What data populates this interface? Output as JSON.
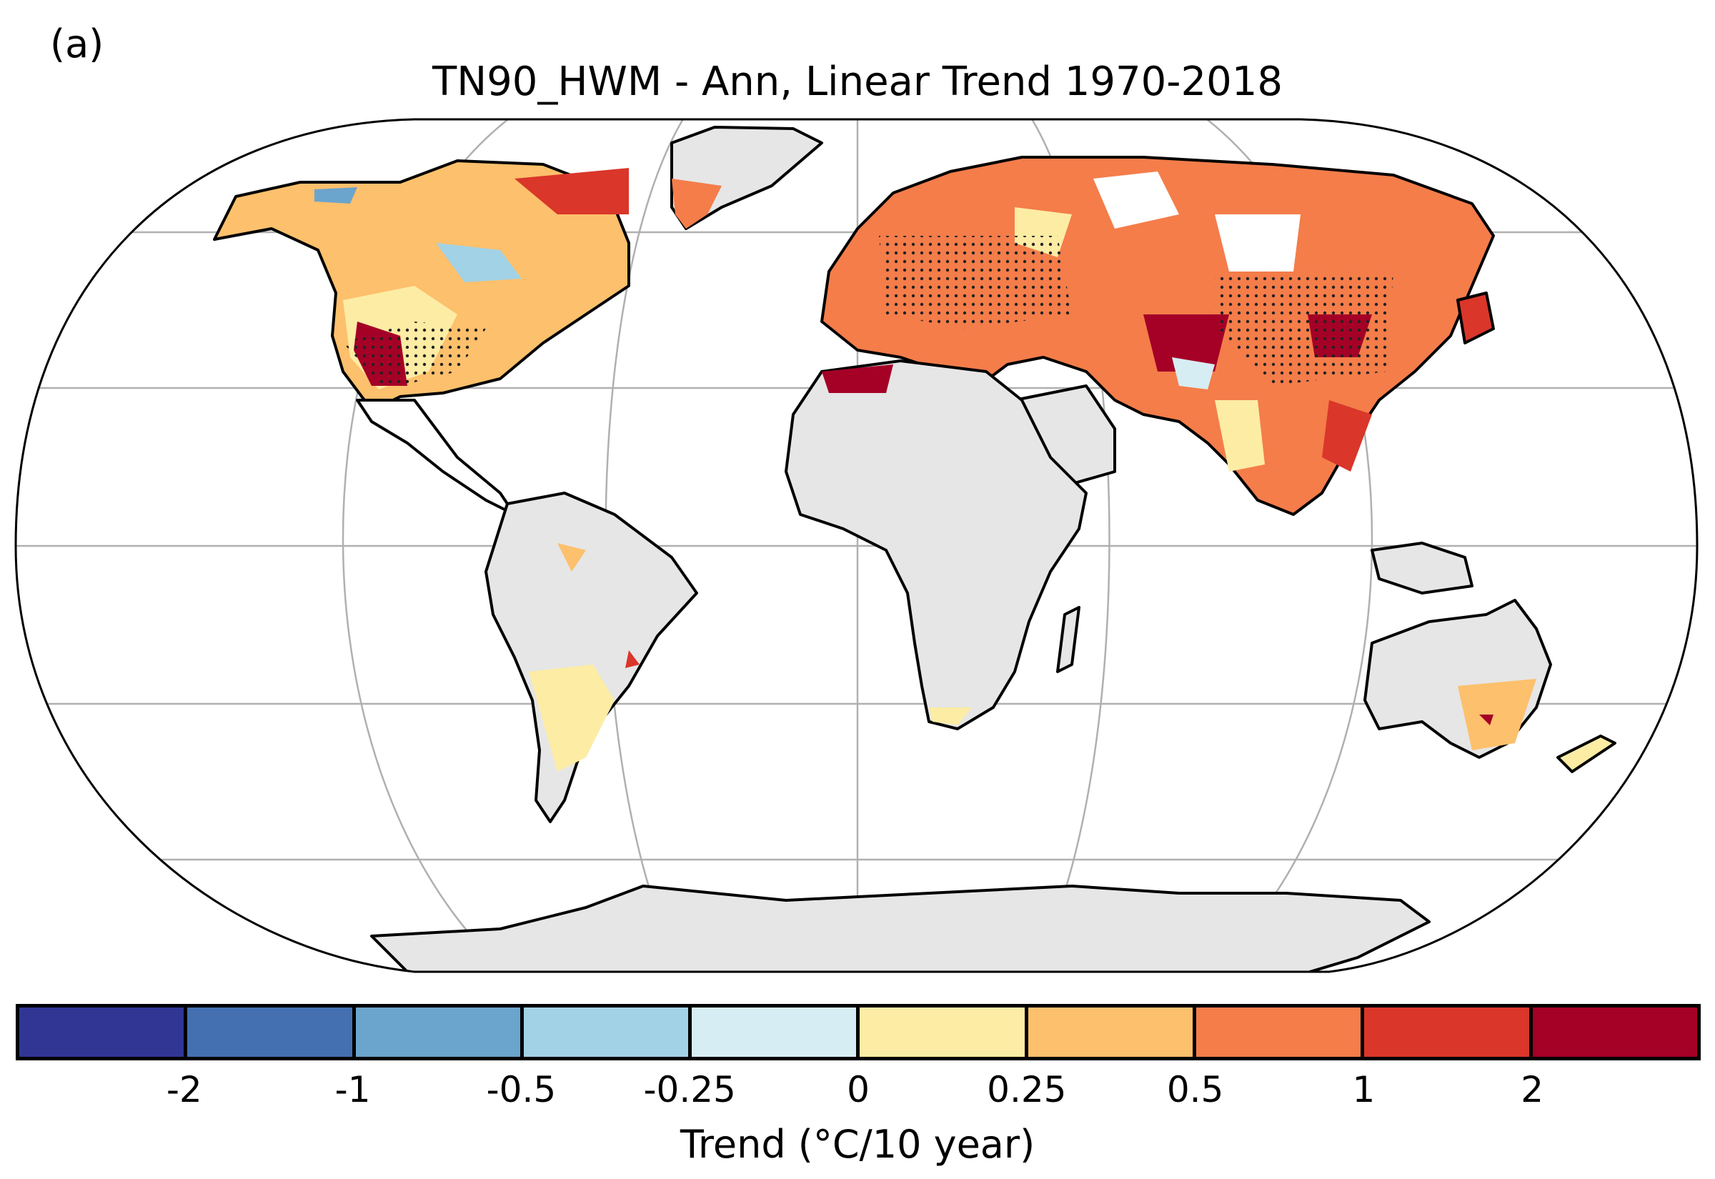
{
  "panel_label": "(a)",
  "title": "TN90_HWM - Ann, Linear Trend 1970-2018",
  "colorbar": {
    "label": "Trend (°C/10 year)",
    "bins": [
      {
        "color": "#313695"
      },
      {
        "color": "#4470b1"
      },
      {
        "color": "#6ba4cc"
      },
      {
        "color": "#a2d2e5"
      },
      {
        "color": "#d6edf3"
      },
      {
        "color": "#fdeca4"
      },
      {
        "color": "#fdc06c"
      },
      {
        "color": "#f47d4a"
      },
      {
        "color": "#da362a"
      },
      {
        "color": "#a50026"
      }
    ],
    "ticks": [
      "-2",
      "-1",
      "-0.5",
      "-0.25",
      "0",
      "0.25",
      "0.5",
      "1",
      "2"
    ]
  },
  "colors": {
    "no_data_land": "#e6e6e6",
    "ocean": "#ffffff",
    "gridlines": "#b0b0b0",
    "coastline": "#000000"
  },
  "significance_markers": "stippled dots"
}
